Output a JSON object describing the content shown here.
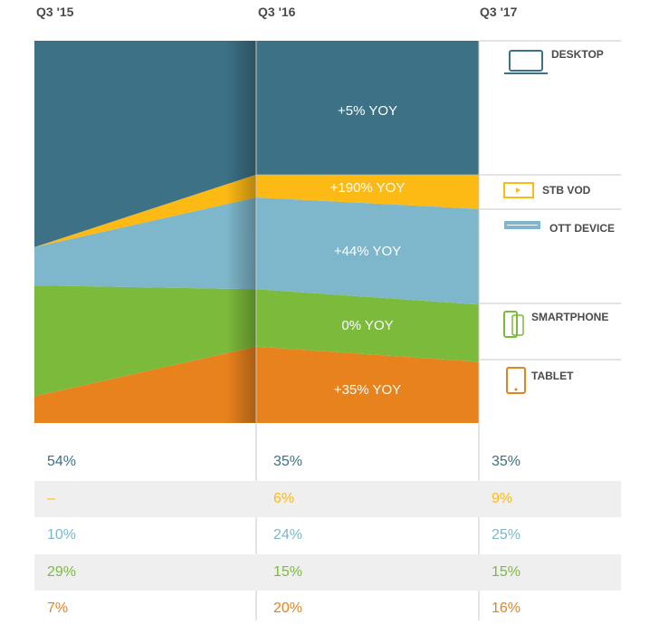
{
  "chart_data": {
    "type": "area",
    "x": [
      "Q3 '15",
      "Q3 '16",
      "Q3 '17"
    ],
    "series": [
      {
        "name": "TABLET",
        "values": [
          7,
          20,
          16
        ],
        "yoy": "+35% YOY"
      },
      {
        "name": "SMARTPHONE",
        "values": [
          29,
          15,
          15
        ],
        "yoy": "0% YOY"
      },
      {
        "name": "OTT DEVICE",
        "values": [
          10,
          24,
          25
        ],
        "yoy": "+44% YOY"
      },
      {
        "name": "STB VOD",
        "values": [
          null,
          6,
          9
        ],
        "yoy": "+190% YOY"
      },
      {
        "name": "DESKTOP",
        "values": [
          54,
          35,
          35
        ],
        "yoy": "+5% YOY"
      }
    ],
    "table": [
      [
        "54%",
        "35%",
        "35%"
      ],
      [
        "–",
        "6%",
        "9%"
      ],
      [
        "10%",
        "24%",
        "25%"
      ],
      [
        "29%",
        "15%",
        "15%"
      ],
      [
        "7%",
        "20%",
        "16%"
      ]
    ],
    "stacked": true,
    "ylim": [
      0,
      100
    ]
  },
  "colors": {
    "desktop": "#3c7186",
    "stb": "#fdb914",
    "ott": "#7eb7cb",
    "smartphone": "#7cba3b",
    "tablet": "#e8821d",
    "text": "#4a4a4a"
  }
}
